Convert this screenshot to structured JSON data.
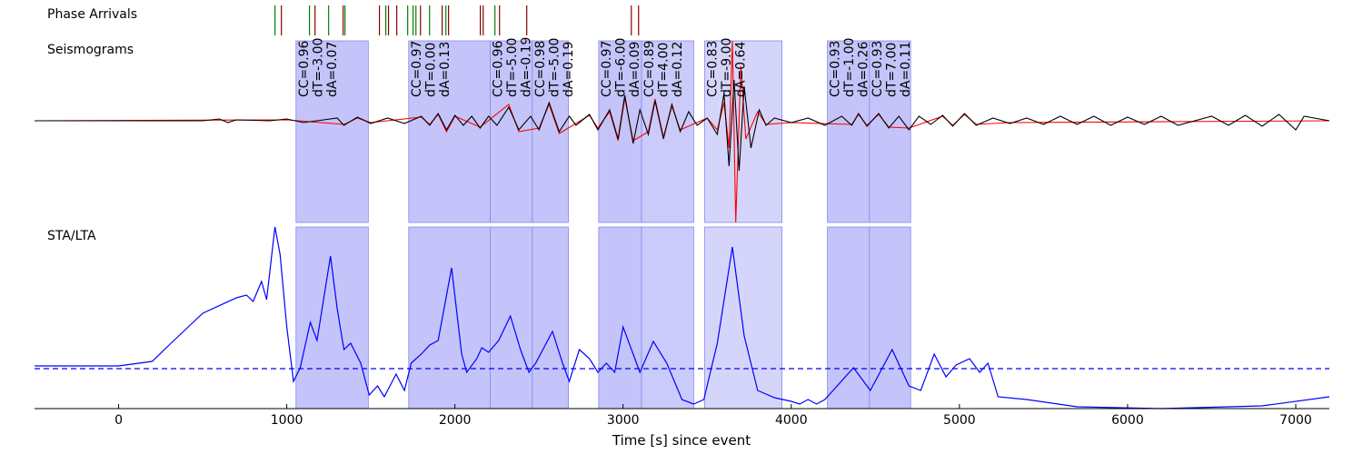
{
  "chart_data": {
    "type": "waveform",
    "xlabel": "Time [s] since event",
    "xlim": [
      -500,
      7200
    ],
    "xticks": [
      0,
      1000,
      2000,
      3000,
      4000,
      5000,
      6000,
      7000
    ],
    "phase_arrivals": {
      "label": "Phase Arrivals",
      "series": [
        {
          "color": "#008000",
          "x": [
            930,
            1135,
            1249,
            1346,
            1589,
            1719,
            1751,
            1768,
            1849,
            1946,
            2238
          ]
        },
        {
          "color": "#8b0000",
          "x": [
            968,
            1168,
            1335,
            1551,
            1605,
            1654,
            1795,
            1924,
            1962,
            2151,
            2168,
            2265,
            2427,
            3049,
            3092
          ]
        }
      ]
    },
    "seismograms": {
      "label": "Seismograms",
      "ylim": [
        -1.12,
        0.88
      ],
      "series": [
        {
          "color": "#ff0000",
          "x": [
            -500,
            1000,
            1340,
            1420,
            1500,
            1800,
            1850,
            1900,
            1950,
            2000,
            2150,
            2320,
            2380,
            2500,
            2560,
            2620,
            2800,
            2850,
            2920,
            2970,
            3010,
            3060,
            3150,
            3190,
            3240,
            3290,
            3340,
            3500,
            3560,
            3600,
            3630,
            3650,
            3670,
            3700,
            3730,
            3800,
            3850,
            4000,
            4360,
            4400,
            4450,
            4520,
            4580,
            4700,
            4900,
            4960,
            5030,
            5100,
            5300,
            7200
          ],
          "values": [
            0,
            0.01,
            -0.04,
            0.03,
            -0.02,
            0.04,
            -0.04,
            0.07,
            -0.12,
            0.05,
            -0.07,
            0.18,
            -0.12,
            -0.08,
            0.18,
            -0.14,
            0.06,
            -0.08,
            0.1,
            -0.22,
            0.25,
            -0.22,
            -0.12,
            0.24,
            -0.18,
            0.16,
            -0.1,
            0.03,
            -0.1,
            0.2,
            -0.3,
            0.88,
            -1.12,
            0.6,
            -0.2,
            0.1,
            -0.04,
            -0.02,
            -0.04,
            0.07,
            -0.05,
            0.07,
            -0.07,
            -0.08,
            0.05,
            -0.05,
            0.07,
            -0.04,
            -0.02,
            0
          ]
        },
        {
          "color": "#000000",
          "x": [
            -500,
            500,
            600,
            650,
            700,
            900,
            1000,
            1100,
            1300,
            1340,
            1420,
            1500,
            1600,
            1700,
            1800,
            1850,
            1900,
            1950,
            2000,
            2050,
            2100,
            2150,
            2200,
            2250,
            2320,
            2380,
            2450,
            2500,
            2560,
            2620,
            2680,
            2720,
            2800,
            2850,
            2920,
            2970,
            3010,
            3060,
            3100,
            3150,
            3190,
            3240,
            3290,
            3340,
            3390,
            3440,
            3500,
            3560,
            3600,
            3630,
            3660,
            3690,
            3720,
            3760,
            3810,
            3850,
            3900,
            4000,
            4100,
            4200,
            4300,
            4360,
            4400,
            4450,
            4520,
            4580,
            4640,
            4700,
            4760,
            4830,
            4900,
            4960,
            5030,
            5100,
            5200,
            5300,
            5400,
            5500,
            5600,
            5700,
            5800,
            5900,
            6000,
            6100,
            6200,
            6300,
            6500,
            6600,
            6700,
            6800,
            6900,
            7000,
            7050,
            7200
          ],
          "values": [
            0,
            0,
            0.02,
            -0.02,
            0.01,
            0,
            0.02,
            -0.02,
            0.03,
            -0.05,
            0.04,
            -0.03,
            0.03,
            -0.03,
            0.05,
            -0.05,
            0.08,
            -0.1,
            0.06,
            -0.05,
            0.05,
            -0.08,
            0.05,
            -0.05,
            0.15,
            -0.1,
            0.05,
            -0.1,
            0.2,
            -0.12,
            0.05,
            -0.05,
            0.07,
            -0.1,
            0.12,
            -0.2,
            0.28,
            -0.25,
            0.12,
            -0.15,
            0.22,
            -0.2,
            0.18,
            -0.12,
            0.1,
            -0.05,
            0.03,
            -0.15,
            0.3,
            -0.5,
            0.45,
            -0.55,
            0.38,
            -0.3,
            0.12,
            -0.05,
            0.03,
            -0.02,
            0.03,
            -0.05,
            0.05,
            -0.05,
            0.08,
            -0.06,
            0.08,
            -0.08,
            0.05,
            -0.1,
            0.05,
            -0.04,
            0.06,
            -0.06,
            0.08,
            -0.05,
            0.03,
            -0.03,
            0.03,
            -0.04,
            0.05,
            -0.04,
            0.05,
            -0.05,
            0.04,
            -0.04,
            0.05,
            -0.05,
            0.05,
            -0.05,
            0.06,
            -0.06,
            0.07,
            -0.1,
            0.05,
            0
          ]
        }
      ]
    },
    "sta_lta": {
      "label": "STA/LTA",
      "ylim": [
        0,
        1
      ],
      "color": "#0000ff",
      "threshold": 0.22,
      "x": [
        -500,
        0,
        200,
        300,
        500,
        700,
        760,
        800,
        850,
        880,
        930,
        960,
        1000,
        1040,
        1080,
        1140,
        1180,
        1260,
        1300,
        1340,
        1380,
        1440,
        1490,
        1540,
        1580,
        1650,
        1700,
        1740,
        1800,
        1850,
        1900,
        1980,
        2040,
        2070,
        2130,
        2160,
        2200,
        2260,
        2330,
        2390,
        2440,
        2480,
        2580,
        2640,
        2680,
        2740,
        2800,
        2850,
        2900,
        2950,
        3000,
        3060,
        3100,
        3180,
        3260,
        3350,
        3420,
        3480,
        3560,
        3650,
        3720,
        3800,
        3900,
        4000,
        4050,
        4100,
        4150,
        4200,
        4370,
        4470,
        4600,
        4700,
        4770,
        4850,
        4920,
        4980,
        5060,
        5120,
        5170,
        5230,
        5400,
        5700,
        6200,
        6800,
        7200
      ],
      "values": [
        0.235,
        0.235,
        0.26,
        0.35,
        0.525,
        0.61,
        0.625,
        0.59,
        0.7,
        0.6,
        1.0,
        0.85,
        0.45,
        0.15,
        0.225,
        0.475,
        0.375,
        0.84,
        0.55,
        0.325,
        0.36,
        0.25,
        0.075,
        0.125,
        0.065,
        0.19,
        0.1,
        0.25,
        0.3,
        0.35,
        0.375,
        0.775,
        0.3,
        0.2,
        0.275,
        0.335,
        0.31,
        0.375,
        0.51,
        0.325,
        0.2,
        0.25,
        0.425,
        0.25,
        0.15,
        0.325,
        0.275,
        0.2,
        0.25,
        0.2,
        0.45,
        0.3,
        0.2,
        0.37,
        0.25,
        0.05,
        0.025,
        0.05,
        0.36,
        0.89,
        0.4,
        0.1,
        0.06,
        0.04,
        0.025,
        0.05,
        0.025,
        0.05,
        0.225,
        0.1,
        0.325,
        0.125,
        0.1,
        0.3,
        0.175,
        0.24,
        0.275,
        0.2,
        0.25,
        0.065,
        0.05,
        0.01,
        0.0,
        0.015,
        0.065
      ]
    },
    "windows": [
      {
        "start": 1055,
        "end": 1485,
        "color": "#c4c4fa",
        "labels": [
          "CC=0.96",
          "dT=-3.00",
          "dA=0.07"
        ]
      },
      {
        "start": 1725,
        "end": 2210,
        "color": "#c4c4fa",
        "labels": [
          "CC=0.97",
          "dT=0.00",
          "dA=0.13"
        ]
      },
      {
        "start": 2210,
        "end": 2460,
        "color": "#c4c4fa",
        "labels": [
          "CC=0.96",
          "dT=-5.00",
          "dA=-0.19"
        ]
      },
      {
        "start": 2460,
        "end": 2675,
        "color": "#c4c4fa",
        "labels": [
          "CC=0.98",
          "dT=-5.00",
          "dA=0.19"
        ]
      },
      {
        "start": 2855,
        "end": 3110,
        "color": "#c4c4fa",
        "labels": [
          "CC=0.97",
          "dT=-6.00",
          "dA=0.09"
        ]
      },
      {
        "start": 3110,
        "end": 3420,
        "color": "#cacafb",
        "labels": [
          "CC=0.89",
          "dT=4.00",
          "dA=0.12"
        ]
      },
      {
        "start": 3485,
        "end": 3945,
        "color": "#d5d5fb",
        "labels": [
          "CC=0.83",
          "dT=-9.00",
          "dA=0.64"
        ]
      },
      {
        "start": 4215,
        "end": 4465,
        "color": "#c4c4fa",
        "labels": [
          "CC=0.93",
          "dT=-1.00",
          "dA=0.26"
        ]
      },
      {
        "start": 4465,
        "end": 4710,
        "color": "#c4c4fa",
        "labels": [
          "CC=0.93",
          "dT=7.00",
          "dA=0.11"
        ]
      }
    ]
  }
}
